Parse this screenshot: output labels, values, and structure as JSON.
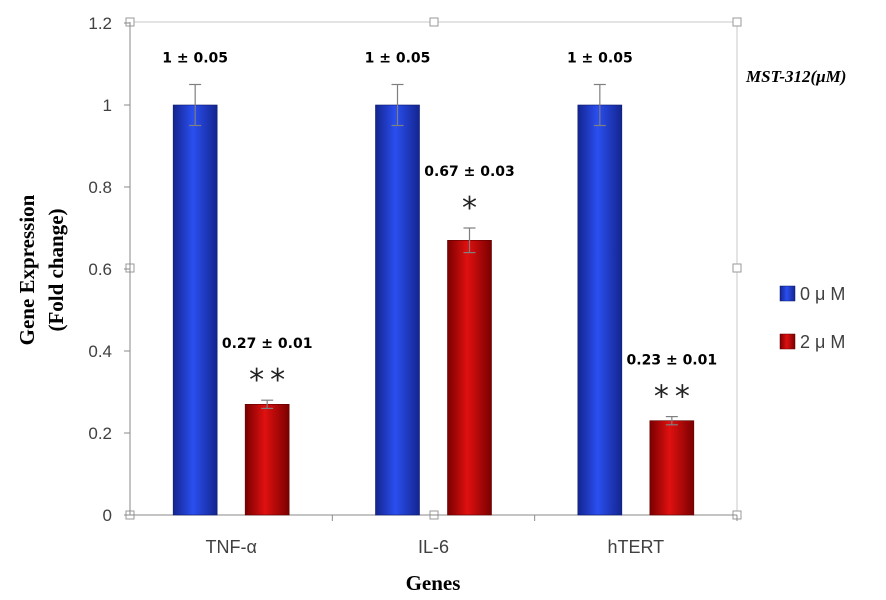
{
  "chart_data": {
    "type": "bar",
    "categories": [
      "TNF-α",
      "IL-6",
      "hTERT"
    ],
    "series": [
      {
        "name": "0 μ M",
        "color": "#1f3fcf",
        "values": [
          1,
          1,
          1
        ],
        "errors": [
          0.05,
          0.05,
          0.05
        ],
        "labels": [
          "1 ± 0.05",
          "1 ± 0.05",
          "1 ± 0.05"
        ],
        "significance": [
          "",
          "",
          ""
        ]
      },
      {
        "name": "2 μ M",
        "color": "#c00000",
        "values": [
          0.27,
          0.67,
          0.23
        ],
        "errors": [
          0.01,
          0.03,
          0.01
        ],
        "labels": [
          "0.27 ± 0.01",
          "0.67 ± 0.03",
          "0.23 ± 0.01"
        ],
        "significance": [
          "**",
          "*",
          "**"
        ]
      }
    ],
    "y_ticks": [
      "0",
      "0.2",
      "0.4",
      "0.6",
      "0.8",
      "1",
      "1.2"
    ],
    "ylim": [
      0,
      1.2
    ],
    "xlabel": "Genes",
    "ylabel_line1": "Gene Expression",
    "ylabel_line2": "(Fold change)",
    "legend_title": "MST-312(μM)",
    "legend_position": "right",
    "grid": false
  }
}
